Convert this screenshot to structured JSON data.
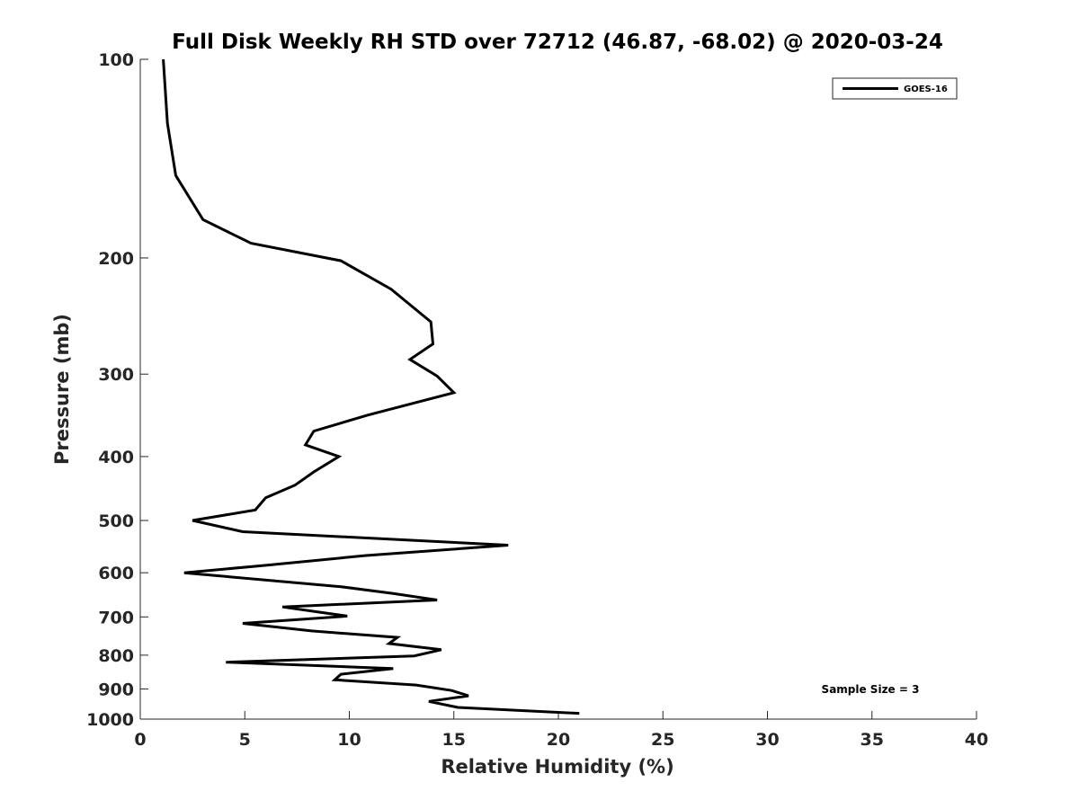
{
  "chart_data": {
    "type": "line",
    "title": "Full Disk Weekly RH STD over 72712 (46.87, -68.02) @ 2020-03-24",
    "xlabel": "Relative Humidity (%)",
    "ylabel": "Pressure (mb)",
    "xlim": [
      0,
      40
    ],
    "ylim": [
      100,
      1000
    ],
    "y_scale": "log",
    "y_reversed": true,
    "grid": false,
    "legend_position": "top-right",
    "x_ticks": [
      "0",
      "5",
      "10",
      "15",
      "20",
      "25",
      "30",
      "35",
      "40"
    ],
    "y_ticks": [
      "100",
      "200",
      "300",
      "400",
      "500",
      "600",
      "700",
      "800",
      "900",
      "1000"
    ],
    "annotation": "Sample Size = 3",
    "series": [
      {
        "name": "GOES-16",
        "color": "#000000",
        "points": [
          [
            1.1,
            100
          ],
          [
            1.3,
            125
          ],
          [
            1.7,
            150
          ],
          [
            3.0,
            175
          ],
          [
            5.3,
            190
          ],
          [
            9.6,
            202
          ],
          [
            12.0,
            223
          ],
          [
            13.9,
            250
          ],
          [
            14.0,
            270
          ],
          [
            12.9,
            285
          ],
          [
            14.2,
            302
          ],
          [
            15.0,
            320
          ],
          [
            10.9,
            346
          ],
          [
            8.3,
            366
          ],
          [
            7.9,
            384
          ],
          [
            9.5,
            400
          ],
          [
            8.3,
            422
          ],
          [
            7.4,
            442
          ],
          [
            6.0,
            462
          ],
          [
            5.5,
            482
          ],
          [
            2.5,
            500
          ],
          [
            4.9,
            520
          ],
          [
            17.6,
            545
          ],
          [
            10.8,
            565
          ],
          [
            5.9,
            585
          ],
          [
            2.1,
            600
          ],
          [
            9.6,
            630
          ],
          [
            12.1,
            645
          ],
          [
            14.2,
            660
          ],
          [
            6.8,
            676
          ],
          [
            9.9,
            698
          ],
          [
            4.9,
            716
          ],
          [
            8.2,
            735
          ],
          [
            12.3,
            752
          ],
          [
            11.9,
            768
          ],
          [
            14.4,
            785
          ],
          [
            13.1,
            802
          ],
          [
            4.1,
            820
          ],
          [
            12.1,
            838
          ],
          [
            9.6,
            855
          ],
          [
            9.3,
            872
          ],
          [
            13.2,
            888
          ],
          [
            14.9,
            905
          ],
          [
            15.7,
            922
          ],
          [
            13.8,
            940
          ],
          [
            15.2,
            960
          ],
          [
            21.0,
            980
          ]
        ]
      }
    ]
  }
}
